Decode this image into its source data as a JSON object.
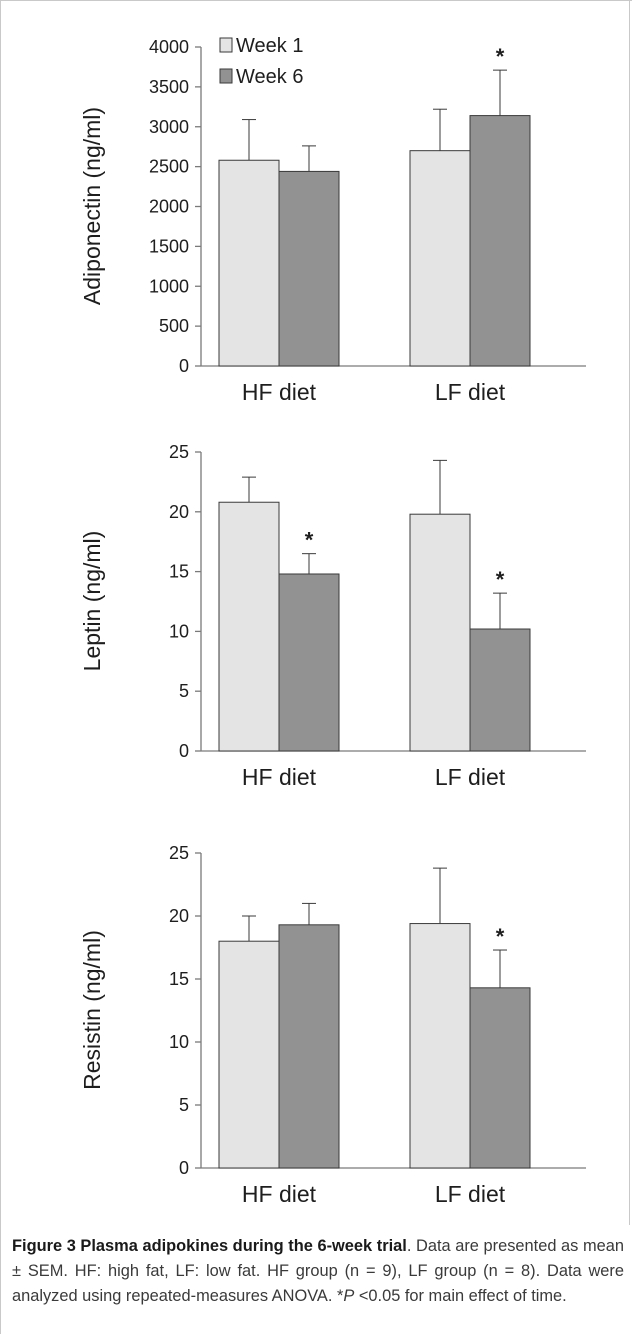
{
  "colors": {
    "week1_fill": "#e4e4e4",
    "week6_fill": "#929292",
    "bar_stroke": "#3a3a3a",
    "axis": "#7a7a7a",
    "text": "#1e1e1e"
  },
  "legend": {
    "week1": "Week 1",
    "week6": "Week 6"
  },
  "chart_data": [
    {
      "type": "bar",
      "ylabel": "Adiponectin (ng/ml)",
      "ylim": [
        0,
        4000
      ],
      "yticks": [
        "0",
        "500",
        "1000",
        "1500",
        "2000",
        "2500",
        "3000",
        "3500",
        "4000"
      ],
      "categories": [
        "HF diet",
        "LF diet"
      ],
      "series": [
        {
          "name": "Week 1",
          "values": [
            2580,
            2700
          ],
          "errors": [
            510,
            520
          ]
        },
        {
          "name": "Week 6",
          "values": [
            2440,
            3140
          ],
          "errors": [
            320,
            570
          ]
        }
      ],
      "significance": [
        {
          "category": "LF diet",
          "series": "Week 6",
          "label": "*"
        }
      ]
    },
    {
      "type": "bar",
      "ylabel": "Leptin (ng/ml)",
      "ylim": [
        0,
        25
      ],
      "yticks": [
        "0",
        "5",
        "10",
        "15",
        "20",
        "25"
      ],
      "categories": [
        "HF diet",
        "LF diet"
      ],
      "series": [
        {
          "name": "Week 1",
          "values": [
            20.8,
            19.8
          ],
          "errors": [
            2.1,
            4.5
          ]
        },
        {
          "name": "Week 6",
          "values": [
            14.8,
            10.2
          ],
          "errors": [
            1.7,
            3.0
          ]
        }
      ],
      "significance": [
        {
          "category": "HF diet",
          "series": "Week 6",
          "label": "*"
        },
        {
          "category": "LF diet",
          "series": "Week 6",
          "label": "*"
        }
      ]
    },
    {
      "type": "bar",
      "ylabel": "Resistin (ng/ml)",
      "ylim": [
        0,
        25
      ],
      "yticks": [
        "0",
        "5",
        "10",
        "15",
        "20",
        "25"
      ],
      "categories": [
        "HF diet",
        "LF diet"
      ],
      "series": [
        {
          "name": "Week 1",
          "values": [
            18.0,
            19.4
          ],
          "errors": [
            2.0,
            4.4
          ]
        },
        {
          "name": "Week 6",
          "values": [
            19.3,
            14.3
          ],
          "errors": [
            1.7,
            3.0
          ]
        }
      ],
      "significance": [
        {
          "category": "LF diet",
          "series": "Week 6",
          "label": "*"
        }
      ]
    }
  ],
  "caption": {
    "title": "Figure 3 Plasma adipokines during the 6-week trial",
    "body1": ". Data are presented as mean ± SEM. HF: high fat, LF: low fat. HF group (n = 9), LF group (n = 8). Data were analyzed using repeated-measures ANOVA. *",
    "p": "P",
    "body2": " <0.05 for main effect of time."
  }
}
